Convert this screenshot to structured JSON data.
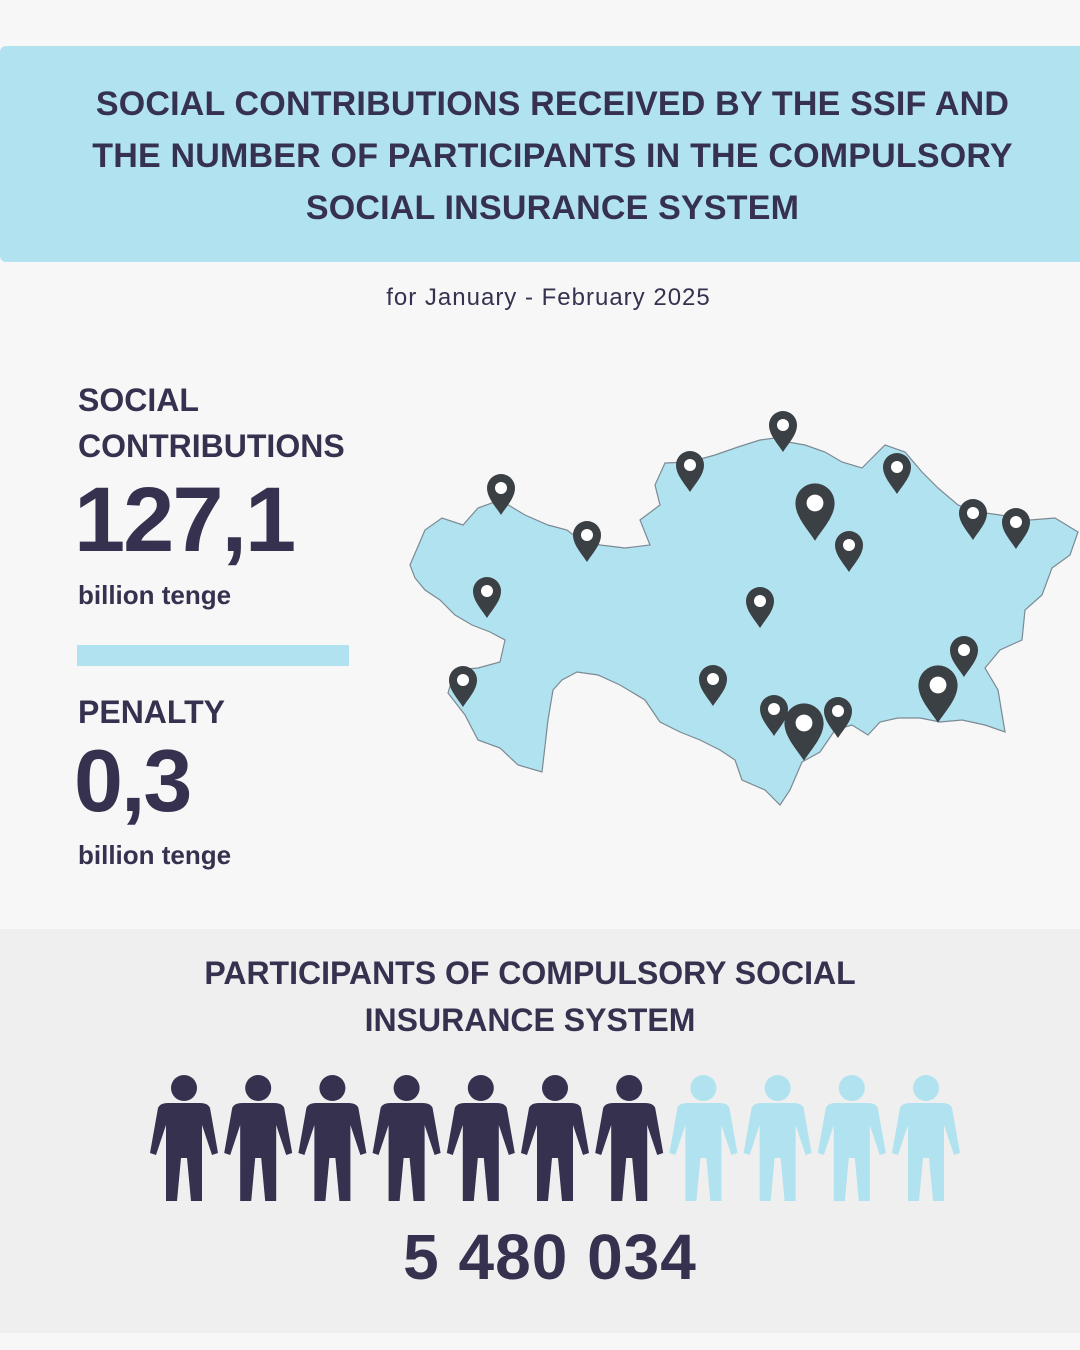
{
  "header": {
    "title": "SOCIAL CONTRIBUTIONS RECEIVED BY THE SSIF AND THE NUMBER OF PARTICIPANTS IN THE COMPULSORY SOCIAL INSURANCE SYSTEM",
    "period": "for January - February 2025"
  },
  "contributions": {
    "label_line1": "SOCIAL",
    "label_line2": "CONTRIBUTIONS",
    "value": "127,1",
    "unit": "billion tenge"
  },
  "penalty": {
    "label": "PENALTY",
    "value": "0,3",
    "unit": "billion tenge"
  },
  "participants": {
    "title_line1": "PARTICIPANTS OF COMPULSORY SOCIAL",
    "title_line2": "INSURANCE SYSTEM",
    "count": "5 480 034",
    "icons_total": 11,
    "icons_filled": 7
  },
  "colors": {
    "dark": "#35314f",
    "light_blue": "#b1e2ef",
    "map_fill": "#b1e2ef",
    "pin": "#3b4045"
  },
  "map": {
    "region": "Kazakhstan",
    "pin_icon": "map-pin-icon",
    "pin_count": 20
  }
}
